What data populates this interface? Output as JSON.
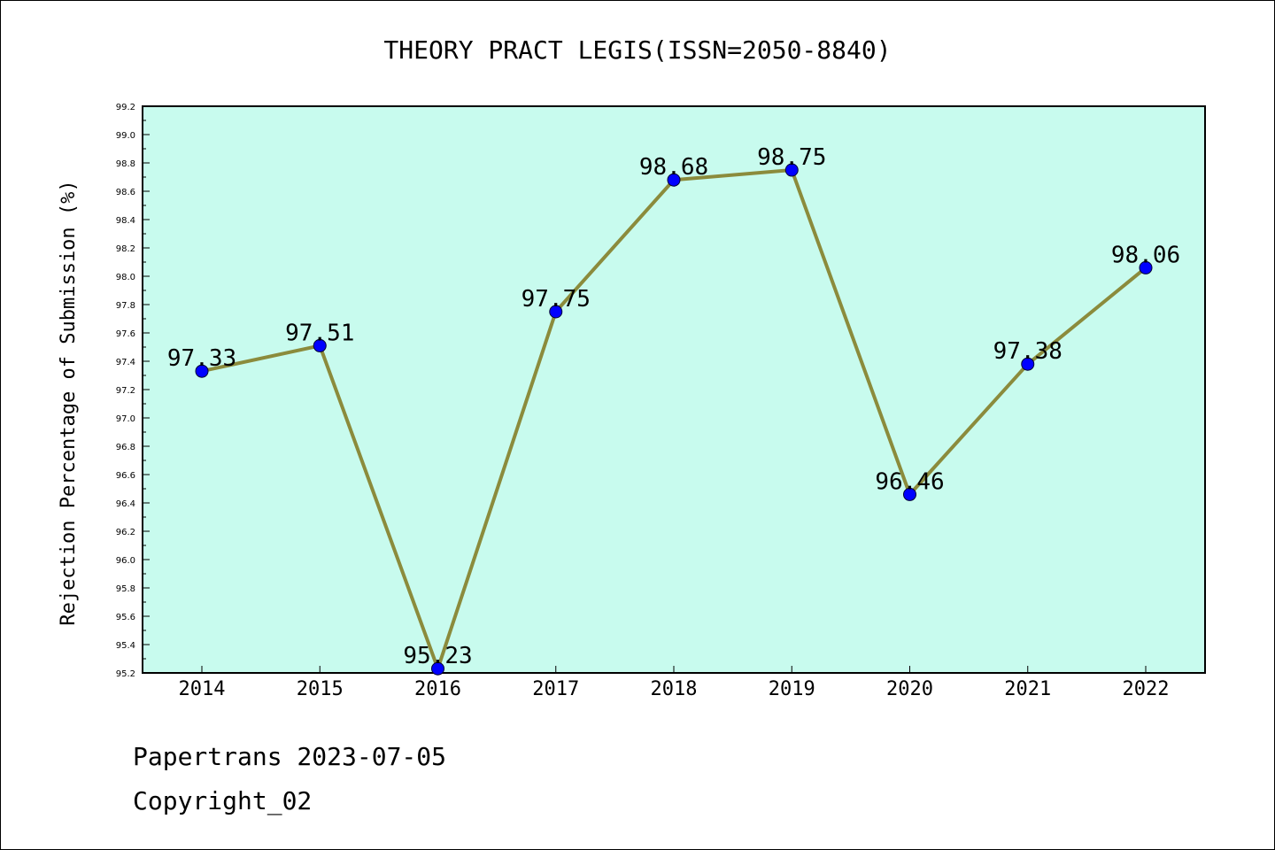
{
  "chart_data": {
    "type": "line",
    "title": "THEORY PRACT LEGIS(ISSN=2050-8840)",
    "xlabel": "",
    "ylabel": "Rejection Percentage of Submission (%)",
    "categories": [
      "2014",
      "2015",
      "2016",
      "2017",
      "2018",
      "2019",
      "2020",
      "2021",
      "2022"
    ],
    "values": [
      97.33,
      97.51,
      95.23,
      97.75,
      98.68,
      98.75,
      96.46,
      97.38,
      98.06
    ],
    "data_labels": [
      "97.33",
      "97.51",
      "95.23",
      "97.75",
      "98.68",
      "98.75",
      "96.46",
      "97.38",
      "98.06"
    ],
    "ylim": [
      95.2,
      99.2
    ],
    "yticks": [
      "95.2",
      "95.4",
      "95.6",
      "95.8",
      "96.0",
      "96.2",
      "96.4",
      "96.6",
      "96.8",
      "97.0",
      "97.2",
      "97.4",
      "97.6",
      "97.8",
      "98.0",
      "98.2",
      "98.4",
      "98.6",
      "98.8",
      "99.0",
      "99.2"
    ],
    "grid": false,
    "colors": {
      "plot_background": "#c8fbee",
      "line": "#8b8b3c",
      "marker": "#0000ff"
    }
  },
  "footer": {
    "line1": "Papertrans 2023-07-05",
    "line2": "Copyright_02"
  }
}
